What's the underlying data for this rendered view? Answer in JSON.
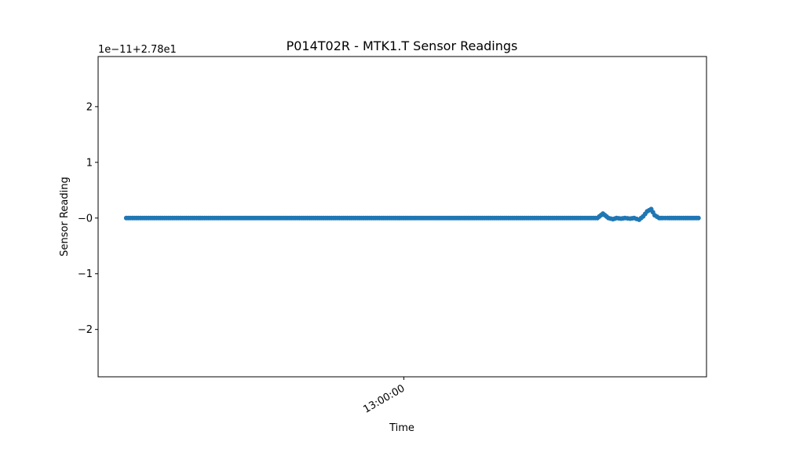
{
  "chart_data": {
    "type": "line",
    "title": "P014T02R - MTK1.T Sensor Readings",
    "xlabel": "Time",
    "ylabel": "Sensor Reading",
    "offset_label": "1e−11+2.78e1",
    "offset": 27.8,
    "scale": 1e-11,
    "ylim": [
      -2.85,
      2.9
    ],
    "y_ticks": [
      {
        "value": 2,
        "label": "2"
      },
      {
        "value": 1,
        "label": "1"
      },
      {
        "value": 0,
        "label": "−0"
      },
      {
        "value": -1,
        "label": "−1"
      },
      {
        "value": -2,
        "label": "−2"
      }
    ],
    "xlim": [
      "12:49:52",
      "13:10:02"
    ],
    "x_ticks": [
      {
        "value": "13:00:00",
        "label": "13:00:00"
      }
    ],
    "series": [
      {
        "color": "#1f77b4",
        "marker": "circle",
        "x": [
          "12:50:48",
          "12:52:00",
          "12:54:00",
          "12:56:00",
          "12:58:00",
          "13:00:00",
          "13:02:00",
          "13:04:00",
          "13:06:00",
          "13:06:25",
          "13:06:36",
          "13:06:47",
          "13:06:56",
          "13:07:03",
          "13:07:12",
          "13:07:20",
          "13:07:30",
          "13:07:38",
          "13:07:48",
          "13:07:56",
          "13:08:04",
          "13:08:12",
          "13:08:19",
          "13:08:28",
          "13:08:35",
          "13:08:45",
          "13:09:00",
          "13:09:20",
          "13:09:35",
          "13:09:46"
        ],
        "y": [
          0,
          0,
          0,
          0,
          0,
          0,
          0,
          0,
          0,
          0,
          0.08,
          0,
          -0.02,
          0,
          -0.01,
          0,
          -0.01,
          0,
          -0.03,
          0.03,
          0.12,
          0.16,
          0.05,
          0,
          0,
          0,
          0,
          0,
          0,
          0
        ]
      }
    ]
  }
}
